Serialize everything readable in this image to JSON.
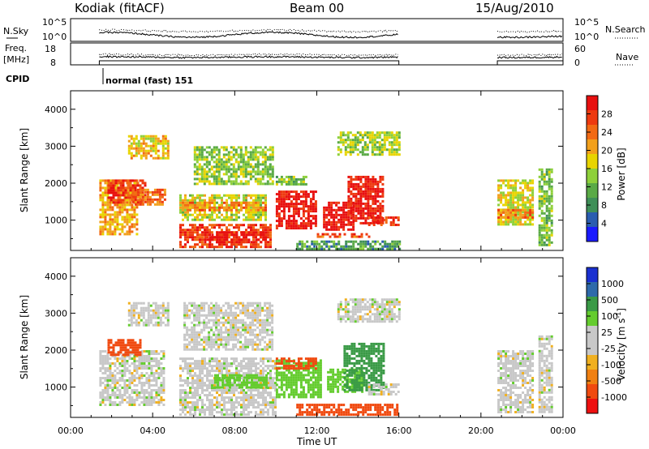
{
  "header": {
    "station": "Kodiak (fitACF)",
    "beam": "Beam 00",
    "date": "15/Aug/2010"
  },
  "aux_panels": {
    "nsky_label": "N.Sky",
    "nsky_ticks": [
      "10^5",
      "10^0"
    ],
    "nsearch_label": "N.Search",
    "nsearch_ticks": [
      "10^5",
      "10^0"
    ],
    "freq_label_1": "Freq.",
    "freq_label_2": "[MHz]",
    "freq_ticks": [
      "18",
      "8"
    ],
    "nave_label": "Nave",
    "nave_ticks": [
      "60",
      "0"
    ],
    "cpid_label": "CPID",
    "cpid_text": "normal (fast) 151"
  },
  "colors": {
    "power_scale": [
      "#1a1aff",
      "#2a5db0",
      "#3f8f58",
      "#5aaa46",
      "#8ed03a",
      "#e8d400",
      "#f2a01c",
      "#f26a14",
      "#ee3a10",
      "#e81010"
    ],
    "velocity_scale": [
      "#ee1010",
      "#f04a10",
      "#f08012",
      "#f0b020",
      "#c8c8c8",
      "#c8c8c8",
      "#64cc2e",
      "#3a9a46",
      "#2e6aaa",
      "#1a30d0"
    ]
  },
  "chart_data": [
    {
      "type": "heatmap",
      "title": "Power",
      "xlabel": "Time UT",
      "ylabel": "Slant Range [km]",
      "x_ticks": [
        "00:00",
        "04:00",
        "08:00",
        "12:00",
        "16:00",
        "20:00",
        "00:00"
      ],
      "y_ticks": [
        "1000",
        "2000",
        "3000",
        "4000"
      ],
      "xlim_hours": [
        0,
        24
      ],
      "ylim_km": [
        180,
        4500
      ],
      "colorbar_label": "Power [dB]",
      "colorbar_ticks": [
        "28",
        "24",
        "20",
        "16",
        "12",
        "8",
        "4"
      ],
      "colorbar_range": [
        0,
        30
      ],
      "data_gaps_hours": [
        [
          0,
          1.4
        ],
        [
          16,
          20.8
        ]
      ],
      "regions": [
        {
          "t0": 1.4,
          "t1": 3.2,
          "r0": 600,
          "r1": 2100,
          "value": 19
        },
        {
          "t0": 1.8,
          "t1": 3.6,
          "r0": 1500,
          "r1": 2100,
          "value": 26
        },
        {
          "t0": 3.0,
          "t1": 4.6,
          "r0": 1400,
          "r1": 1850,
          "value": 23
        },
        {
          "t0": 2.8,
          "t1": 4.8,
          "r0": 2700,
          "r1": 3300,
          "value": 18
        },
        {
          "t0": 5.3,
          "t1": 9.8,
          "r0": 300,
          "r1": 900,
          "value": 25
        },
        {
          "t0": 6.5,
          "t1": 9.5,
          "r0": 400,
          "r1": 700,
          "value": 29
        },
        {
          "t0": 5.3,
          "t1": 9.5,
          "r0": 1000,
          "r1": 1700,
          "value": 15
        },
        {
          "t0": 6.0,
          "t1": 9.8,
          "r0": 2000,
          "r1": 3000,
          "value": 13
        },
        {
          "t0": 5.3,
          "t1": 9.5,
          "r0": 1300,
          "r1": 1500,
          "value": 21
        },
        {
          "t0": 10.0,
          "t1": 12.0,
          "r0": 750,
          "r1": 1800,
          "value": 29
        },
        {
          "t0": 11.0,
          "t1": 16.0,
          "r0": 250,
          "r1": 450,
          "value": 9
        },
        {
          "t0": 12.0,
          "t1": 14.5,
          "r0": 550,
          "r1": 650,
          "value": 24
        },
        {
          "t0": 12.3,
          "t1": 13.8,
          "r0": 750,
          "r1": 1500,
          "value": 29
        },
        {
          "t0": 13.5,
          "t1": 15.2,
          "r0": 900,
          "r1": 2200,
          "value": 28
        },
        {
          "t0": 14.5,
          "t1": 16.0,
          "r0": 900,
          "r1": 1100,
          "value": 26
        },
        {
          "t0": 13.0,
          "t1": 16.0,
          "r0": 2800,
          "r1": 3400,
          "value": 14
        },
        {
          "t0": 10.0,
          "t1": 11.5,
          "r0": 1950,
          "r1": 2200,
          "value": 12
        },
        {
          "t0": 20.8,
          "t1": 22.5,
          "r0": 900,
          "r1": 2100,
          "value": 16
        },
        {
          "t0": 20.8,
          "t1": 22.5,
          "r0": 1100,
          "r1": 1300,
          "value": 22
        },
        {
          "t0": 22.8,
          "t1": 23.4,
          "r0": 300,
          "r1": 2400,
          "value": 12
        }
      ]
    },
    {
      "type": "heatmap",
      "title": "Velocity",
      "xlabel": "Time UT",
      "ylabel": "Slant Range [km]",
      "x_ticks": [
        "00:00",
        "04:00",
        "08:00",
        "12:00",
        "16:00",
        "20:00",
        "00:00"
      ],
      "y_ticks": [
        "1000",
        "2000",
        "3000",
        "4000"
      ],
      "xlim_hours": [
        0,
        24
      ],
      "ylim_km": [
        180,
        4500
      ],
      "colorbar_label": "Velocity [m s",
      "colorbar_label_sup": "-1",
      "colorbar_label_end": "]",
      "colorbar_ticks": [
        "1000",
        "500",
        "100",
        "25",
        "-25",
        "-100",
        "-500",
        "-1000"
      ],
      "data_gaps_hours": [
        [
          0,
          1.4
        ],
        [
          16,
          20.8
        ]
      ],
      "regions": [
        {
          "t0": 1.4,
          "t1": 4.6,
          "r0": 500,
          "r1": 2000,
          "value": 0
        },
        {
          "t0": 1.8,
          "t1": 3.4,
          "r0": 1900,
          "r1": 2300,
          "value": -150
        },
        {
          "t0": 2.8,
          "t1": 4.8,
          "r0": 2700,
          "r1": 3300,
          "value": 0
        },
        {
          "t0": 5.3,
          "t1": 10.0,
          "r0": 250,
          "r1": 1800,
          "value": 0
        },
        {
          "t0": 5.5,
          "t1": 9.8,
          "r0": 2000,
          "r1": 3300,
          "value": 0
        },
        {
          "t0": 7.0,
          "t1": 9.5,
          "r0": 1000,
          "r1": 1350,
          "value": 60
        },
        {
          "t0": 10.0,
          "t1": 12.2,
          "r0": 750,
          "r1": 1750,
          "value": 60
        },
        {
          "t0": 10.0,
          "t1": 12.0,
          "r0": 1500,
          "r1": 1800,
          "value": -150
        },
        {
          "t0": 11.0,
          "t1": 16.0,
          "r0": 250,
          "r1": 550,
          "value": -200
        },
        {
          "t0": 12.5,
          "t1": 14.2,
          "r0": 850,
          "r1": 1500,
          "value": 60
        },
        {
          "t0": 13.3,
          "t1": 15.2,
          "r0": 900,
          "r1": 2200,
          "value": 200
        },
        {
          "t0": 14.5,
          "t1": 16.0,
          "r0": 800,
          "r1": 1100,
          "value": 0
        },
        {
          "t0": 13.0,
          "t1": 16.0,
          "r0": 2800,
          "r1": 3400,
          "value": 0
        },
        {
          "t0": 20.8,
          "t1": 22.5,
          "r0": 300,
          "r1": 2000,
          "value": 0
        },
        {
          "t0": 22.8,
          "t1": 23.4,
          "r0": 300,
          "r1": 2400,
          "value": 0
        }
      ]
    }
  ]
}
